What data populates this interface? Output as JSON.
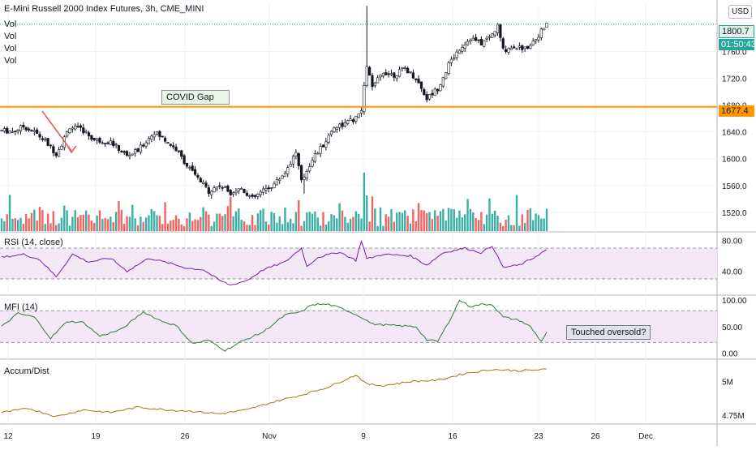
{
  "header": {
    "symbol_title": "E-Mini Russell 2000 Index Futures, 3h, CME_MINI",
    "vol_labels": [
      "Vol",
      "Vol",
      "Vol",
      "Vol"
    ],
    "currency": "USD"
  },
  "price_panel": {
    "current_price": "1800.7",
    "countdown": "01:50:43",
    "level_price": "1677.4",
    "level_color": "#ff9800",
    "covid_gap_label": "COVID Gap",
    "up_color": "#26a69a",
    "down_color": "#ef5350"
  },
  "indicators": {
    "rsi_title": "RSI (14, close)",
    "mfi_title": "MFI (14)",
    "mfi_note": "Touched oversold?",
    "ad_title": "Accum/Dist"
  },
  "chart_data": [
    {
      "type": "candlestick",
      "title": "E-Mini Russell 2000 Index Futures, 3h, CME_MINI",
      "yticks": [
        "1760.0",
        "1720.0",
        "1680.0",
        "1640.0",
        "1600.0",
        "1560.0",
        "1520.0"
      ],
      "ylim": [
        1492,
        1832
      ],
      "xticks": [
        "12",
        "19",
        "26",
        "Nov",
        "9",
        "16",
        "23",
        "26",
        "Dec"
      ],
      "horizontal_level": 1677.4,
      "keypoints": [
        [
          0,
          1642
        ],
        [
          4,
          1641
        ],
        [
          8,
          1648
        ],
        [
          12,
          1640
        ],
        [
          16,
          1626
        ],
        [
          20,
          1608
        ],
        [
          22,
          1622
        ],
        [
          25,
          1648
        ],
        [
          30,
          1642
        ],
        [
          34,
          1628
        ],
        [
          40,
          1625
        ],
        [
          46,
          1604
        ],
        [
          50,
          1612
        ],
        [
          56,
          1640
        ],
        [
          60,
          1628
        ],
        [
          64,
          1614
        ],
        [
          68,
          1590
        ],
        [
          72,
          1570
        ],
        [
          76,
          1552
        ],
        [
          80,
          1560
        ],
        [
          84,
          1550
        ],
        [
          88,
          1556
        ],
        [
          92,
          1540
        ],
        [
          96,
          1552
        ],
        [
          100,
          1562
        ],
        [
          104,
          1580
        ],
        [
          108,
          1610
        ],
        [
          110,
          1565
        ],
        [
          114,
          1600
        ],
        [
          118,
          1620
        ],
        [
          122,
          1648
        ],
        [
          126,
          1652
        ],
        [
          130,
          1660
        ],
        [
          132,
          1672
        ],
        [
          134,
          1740
        ],
        [
          136,
          1705
        ],
        [
          140,
          1730
        ],
        [
          144,
          1725
        ],
        [
          148,
          1735
        ],
        [
          152,
          1720
        ],
        [
          156,
          1690
        ],
        [
          160,
          1705
        ],
        [
          164,
          1740
        ],
        [
          168,
          1765
        ],
        [
          172,
          1780
        ],
        [
          176,
          1772
        ],
        [
          180,
          1785
        ],
        [
          182,
          1798
        ],
        [
          184,
          1762
        ],
        [
          188,
          1768
        ],
        [
          192,
          1764
        ],
        [
          196,
          1780
        ],
        [
          200,
          1800
        ]
      ]
    },
    {
      "type": "line",
      "title": "RSI (14, close)",
      "yticks": [
        "80.00",
        "40.00"
      ],
      "ylim": [
        10,
        90
      ],
      "band": [
        30,
        70
      ],
      "keypoints": [
        [
          0,
          58
        ],
        [
          8,
          62
        ],
        [
          14,
          55
        ],
        [
          20,
          33
        ],
        [
          26,
          62
        ],
        [
          32,
          52
        ],
        [
          40,
          57
        ],
        [
          46,
          40
        ],
        [
          54,
          57
        ],
        [
          62,
          50
        ],
        [
          68,
          44
        ],
        [
          74,
          42
        ],
        [
          80,
          28
        ],
        [
          84,
          22
        ],
        [
          90,
          28
        ],
        [
          96,
          42
        ],
        [
          104,
          52
        ],
        [
          110,
          70
        ],
        [
          112,
          46
        ],
        [
          116,
          58
        ],
        [
          124,
          65
        ],
        [
          130,
          54
        ],
        [
          132,
          80
        ],
        [
          134,
          56
        ],
        [
          140,
          62
        ],
        [
          150,
          60
        ],
        [
          156,
          48
        ],
        [
          162,
          64
        ],
        [
          170,
          70
        ],
        [
          176,
          64
        ],
        [
          180,
          73
        ],
        [
          184,
          45
        ],
        [
          190,
          48
        ],
        [
          194,
          55
        ],
        [
          200,
          68
        ]
      ]
    },
    {
      "type": "line",
      "title": "MFI (14)",
      "yticks": [
        "100.00",
        "50.00",
        "0.00"
      ],
      "ylim": [
        -10,
        108
      ],
      "band": [
        20,
        80
      ],
      "keypoints": [
        [
          0,
          50
        ],
        [
          6,
          75
        ],
        [
          12,
          68
        ],
        [
          18,
          28
        ],
        [
          24,
          60
        ],
        [
          30,
          58
        ],
        [
          36,
          32
        ],
        [
          44,
          45
        ],
        [
          52,
          78
        ],
        [
          58,
          62
        ],
        [
          64,
          52
        ],
        [
          70,
          18
        ],
        [
          76,
          24
        ],
        [
          82,
          5
        ],
        [
          88,
          22
        ],
        [
          96,
          40
        ],
        [
          104,
          72
        ],
        [
          110,
          78
        ],
        [
          114,
          92
        ],
        [
          120,
          92
        ],
        [
          126,
          82
        ],
        [
          132,
          68
        ],
        [
          136,
          55
        ],
        [
          144,
          52
        ],
        [
          152,
          50
        ],
        [
          156,
          25
        ],
        [
          160,
          22
        ],
        [
          164,
          58
        ],
        [
          168,
          100
        ],
        [
          172,
          88
        ],
        [
          176,
          92
        ],
        [
          180,
          92
        ],
        [
          184,
          68
        ],
        [
          190,
          62
        ],
        [
          194,
          50
        ],
        [
          198,
          22
        ],
        [
          200,
          40
        ]
      ]
    },
    {
      "type": "line",
      "title": "Accum/Dist",
      "yticks": [
        "5M",
        "4.75M"
      ],
      "ylim": [
        4.69,
        5.16
      ],
      "keypoints": [
        [
          0,
          4.77
        ],
        [
          10,
          4.8
        ],
        [
          20,
          4.74
        ],
        [
          30,
          4.79
        ],
        [
          40,
          4.77
        ],
        [
          50,
          4.81
        ],
        [
          60,
          4.79
        ],
        [
          70,
          4.78
        ],
        [
          80,
          4.76
        ],
        [
          90,
          4.79
        ],
        [
          100,
          4.85
        ],
        [
          110,
          4.9
        ],
        [
          120,
          4.96
        ],
        [
          130,
          5.05
        ],
        [
          134,
          4.98
        ],
        [
          140,
          4.97
        ],
        [
          150,
          5.0
        ],
        [
          160,
          5.01
        ],
        [
          170,
          5.06
        ],
        [
          180,
          5.09
        ],
        [
          190,
          5.08
        ],
        [
          200,
          5.09
        ]
      ]
    }
  ]
}
